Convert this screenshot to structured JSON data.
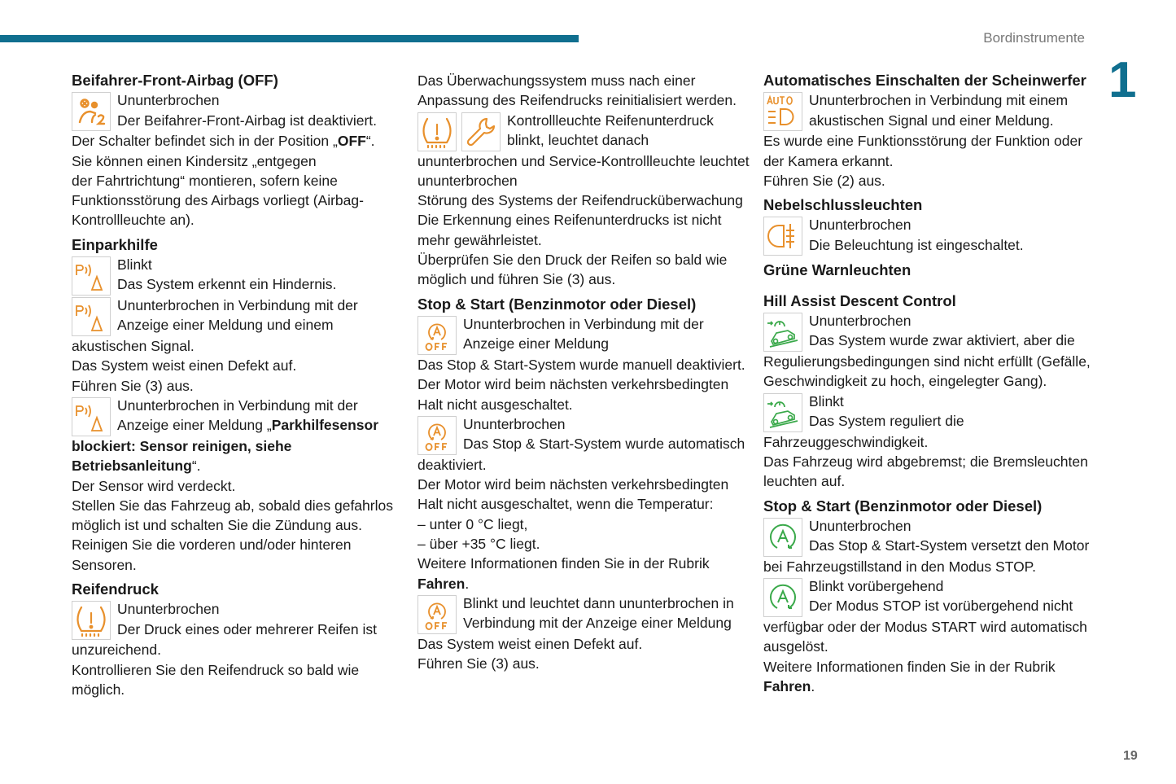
{
  "header": {
    "section": "Bordinstrumente",
    "chapter": "1",
    "page": "19"
  },
  "colors": {
    "accent": "#106f8f",
    "orange": "#e8902c",
    "green": "#3aa94a"
  },
  "columns": [
    {
      "blocks": [
        {
          "type": "heading",
          "text": "Beifahrer-Front-Airbag (OFF)"
        },
        {
          "type": "icon",
          "icons": [
            "airbag-off-icon"
          ],
          "lines": [
            "Ununterbrochen",
            "Der Beifahrer-Front-Airbag ist deaktiviert.",
            [
              {
                "t": "Der Schalter befindet sich in der Position „"
              },
              {
                "t": "OFF",
                "b": true
              },
              {
                "t": "“."
              }
            ],
            "Sie können einen Kindersitz „entgegen",
            "der Fahrtrichtung“ montieren, sofern keine",
            "Funktionsstörung des Airbags vorliegt (Airbag-",
            "Kontrollleuchte an)."
          ]
        },
        {
          "type": "heading",
          "text": "Einparkhilfe"
        },
        {
          "type": "icon",
          "icons": [
            "park-assist-icon"
          ],
          "lines": [
            "Blinkt",
            "Das System erkennt ein Hindernis."
          ]
        },
        {
          "type": "icon",
          "icons": [
            "park-assist-icon"
          ],
          "lines": [
            "Ununterbrochen in Verbindung mit der",
            "Anzeige einer Meldung und einem",
            "akustischen Signal.",
            "Das System weist einen Defekt auf.",
            "Führen Sie (3) aus."
          ]
        },
        {
          "type": "icon",
          "icons": [
            "park-assist-icon"
          ],
          "lines": [
            "Ununterbrochen in Verbindung mit der",
            [
              {
                "t": "Anzeige einer Meldung „"
              },
              {
                "t": "Parkhilfesensor",
                "b": true
              }
            ],
            [
              {
                "t": "blockiert: Sensor reinigen, siehe",
                "b": true
              }
            ],
            [
              {
                "t": "Betriebsanleitung",
                "b": true
              },
              {
                "t": "“."
              }
            ],
            "Der Sensor wird verdeckt.",
            "Stellen Sie das Fahrzeug ab, sobald dies gefahrlos",
            "möglich ist und schalten Sie die Zündung aus.",
            "Reinigen Sie die vorderen und/oder hinteren",
            "Sensoren."
          ]
        },
        {
          "type": "heading",
          "text": "Reifendruck"
        },
        {
          "type": "icon",
          "icons": [
            "tire-pressure-icon"
          ],
          "lines": [
            "Ununterbrochen",
            "Der Druck eines oder mehrerer Reifen ist",
            "unzureichend.",
            "Kontrollieren Sie den Reifendruck so bald wie",
            "möglich."
          ]
        }
      ]
    },
    {
      "blocks": [
        {
          "type": "para",
          "lines": [
            "Das Überwachungssystem muss nach einer",
            "Anpassung des Reifendrucks reinitialisiert werden."
          ]
        },
        {
          "type": "icon",
          "icons": [
            "tire-pressure-icon",
            "wrench-icon"
          ],
          "lines": [
            "Kontrollleuchte Reifenunterdruck",
            "blinkt, leuchtet danach",
            "ununterbrochen und Service-Kontrollleuchte leuchtet",
            "ununterbrochen",
            "Störung des Systems der Reifendrucküberwachung",
            "Die Erkennung eines Reifenunterdrucks ist nicht",
            "mehr gewährleistet.",
            "Überprüfen Sie den Druck der Reifen so bald wie",
            "möglich und führen Sie (3) aus."
          ]
        },
        {
          "type": "heading",
          "text": "Stop & Start (Benzinmotor oder Diesel)"
        },
        {
          "type": "icon",
          "icons": [
            "stop-start-off-icon"
          ],
          "lines": [
            "Ununterbrochen in Verbindung mit der",
            "Anzeige einer Meldung",
            "Das Stop & Start-System wurde manuell deaktiviert.",
            "Der Motor wird beim nächsten verkehrsbedingten",
            "Halt nicht ausgeschaltet."
          ]
        },
        {
          "type": "icon",
          "icons": [
            "stop-start-off-icon"
          ],
          "lines": [
            "Ununterbrochen",
            "Das Stop & Start-System wurde automatisch",
            "deaktiviert.",
            "Der Motor wird beim nächsten verkehrsbedingten",
            "Halt nicht ausgeschaltet, wenn die Temperatur:",
            "–  unter 0 °C liegt,",
            "–  über +35 °C liegt.",
            "Weitere Informationen finden Sie in der Rubrik",
            [
              {
                "t": "Fahren",
                "b": true
              },
              {
                "t": "."
              }
            ]
          ]
        },
        {
          "type": "icon",
          "icons": [
            "stop-start-off-icon"
          ],
          "lines": [
            "Blinkt und leuchtet dann ununterbrochen in",
            "Verbindung mit der Anzeige einer Meldung",
            "Das System weist einen Defekt auf.",
            "Führen Sie (3) aus."
          ]
        }
      ]
    },
    {
      "blocks": [
        {
          "type": "heading",
          "text": "Automatisches Einschalten der Scheinwerfer"
        },
        {
          "type": "icon",
          "icons": [
            "auto-headlights-icon"
          ],
          "lines": [
            "Ununterbrochen in Verbindung mit einem",
            "akustischen Signal und einer Meldung.",
            "Es wurde eine Funktionsstörung der Funktion oder",
            "der Kamera erkannt.",
            "Führen Sie (2) aus."
          ]
        },
        {
          "type": "heading",
          "text": "Nebelschlussleuchten"
        },
        {
          "type": "icon",
          "icons": [
            "rear-fog-light-icon"
          ],
          "lines": [
            "Ununterbrochen",
            "Die Beleuchtung ist eingeschaltet."
          ]
        },
        {
          "type": "heading",
          "text": "Grüne Warnleuchten",
          "gap": true
        },
        {
          "type": "heading",
          "text": "Hill Assist Descent Control"
        },
        {
          "type": "icon",
          "icons": [
            "hill-descent-icon"
          ],
          "lines": [
            "Ununterbrochen",
            "Das System wurde zwar aktiviert, aber die",
            "Regulierungsbedingungen sind nicht erfüllt (Gefälle,",
            "Geschwindigkeit zu hoch, eingelegter Gang)."
          ]
        },
        {
          "type": "icon",
          "icons": [
            "hill-descent-icon"
          ],
          "lines": [
            "Blinkt",
            "Das System reguliert die",
            "Fahrzeuggeschwindigkeit.",
            "Das Fahrzeug wird abgebremst; die Bremsleuchten",
            "leuchten auf."
          ]
        },
        {
          "type": "heading",
          "text": "Stop & Start (Benzinmotor oder Diesel)"
        },
        {
          "type": "icon",
          "icons": [
            "stop-start-on-icon"
          ],
          "lines": [
            "Ununterbrochen",
            "Das Stop & Start-System versetzt den Motor",
            "bei Fahrzeugstillstand in den Modus STOP."
          ]
        },
        {
          "type": "icon",
          "icons": [
            "stop-start-on-icon"
          ],
          "lines": [
            "Blinkt vorübergehend",
            "Der Modus STOP ist vorübergehend nicht",
            "verfügbar oder der Modus START wird automatisch",
            "ausgelöst.",
            "Weitere Informationen finden Sie in der Rubrik",
            [
              {
                "t": "Fahren",
                "b": true
              },
              {
                "t": "."
              }
            ]
          ]
        }
      ]
    }
  ]
}
